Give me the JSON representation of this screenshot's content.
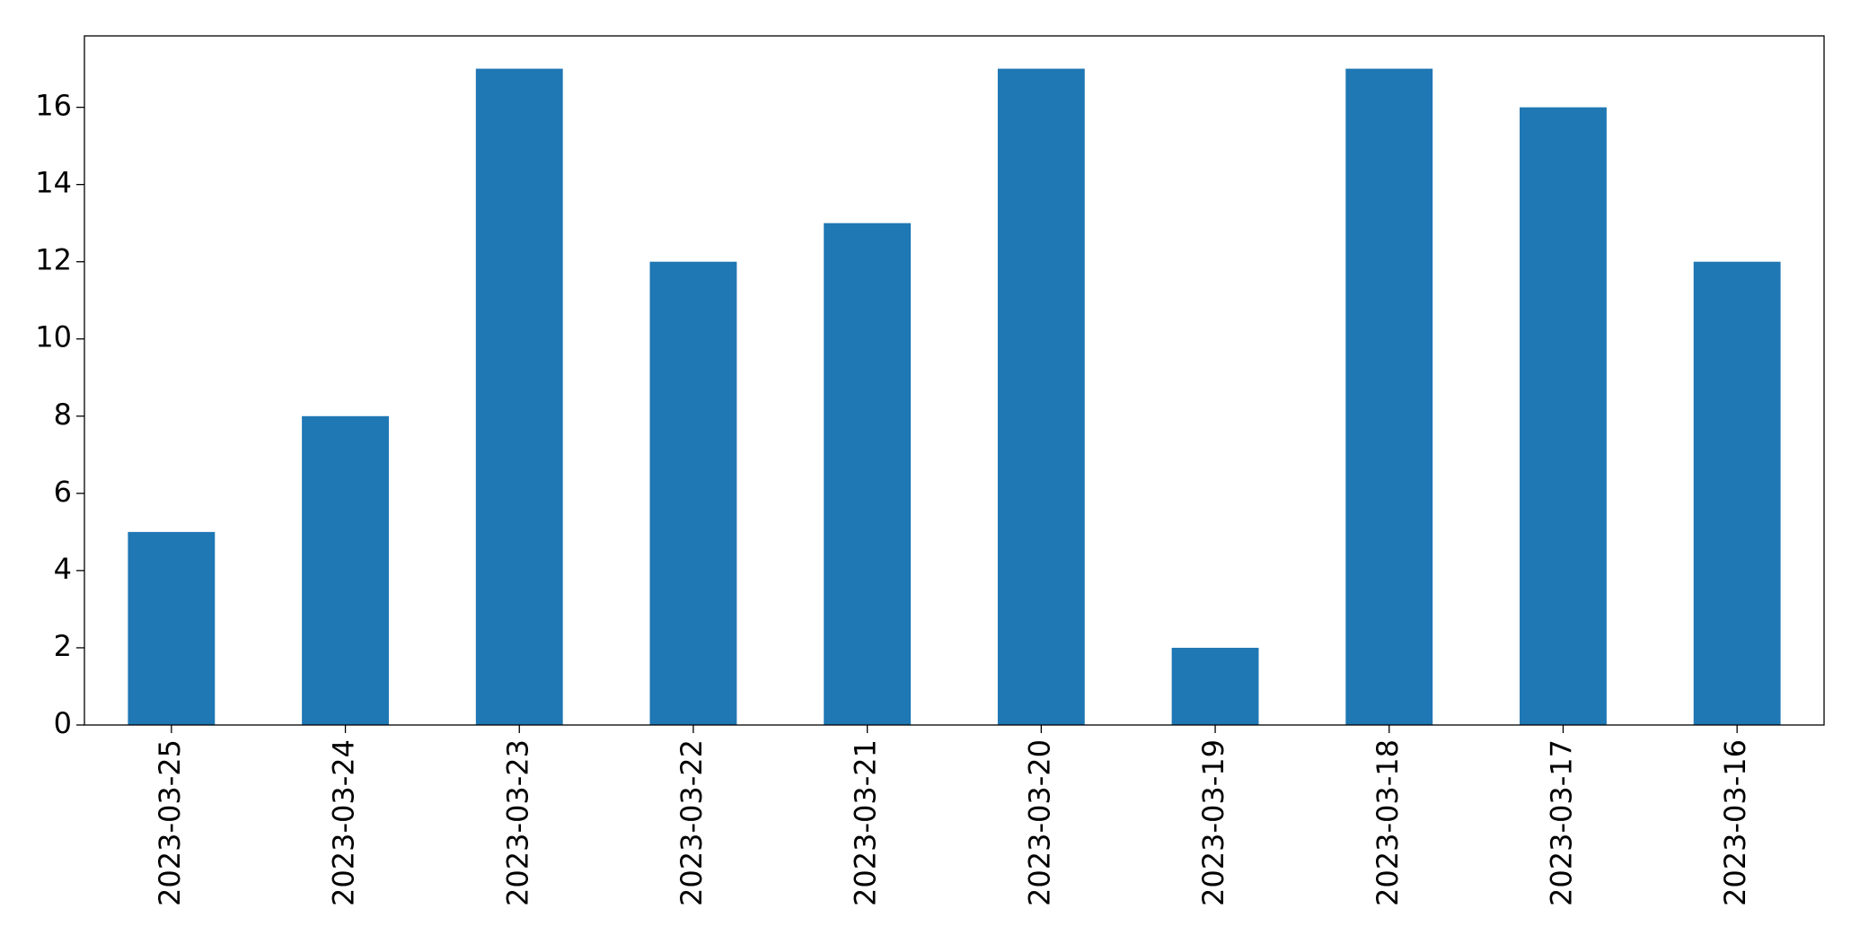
{
  "chart_data": {
    "type": "bar",
    "categories": [
      "2023-03-25",
      "2023-03-24",
      "2023-03-23",
      "2023-03-22",
      "2023-03-21",
      "2023-03-20",
      "2023-03-19",
      "2023-03-18",
      "2023-03-17",
      "2023-03-16"
    ],
    "values": [
      5,
      8,
      17,
      12,
      13,
      17,
      2,
      17,
      16,
      12
    ],
    "color": "#1f77b4",
    "ylim": [
      0,
      17.85
    ],
    "yticks": [
      0,
      2,
      4,
      6,
      8,
      10,
      12,
      14,
      16
    ],
    "grid": false
  }
}
